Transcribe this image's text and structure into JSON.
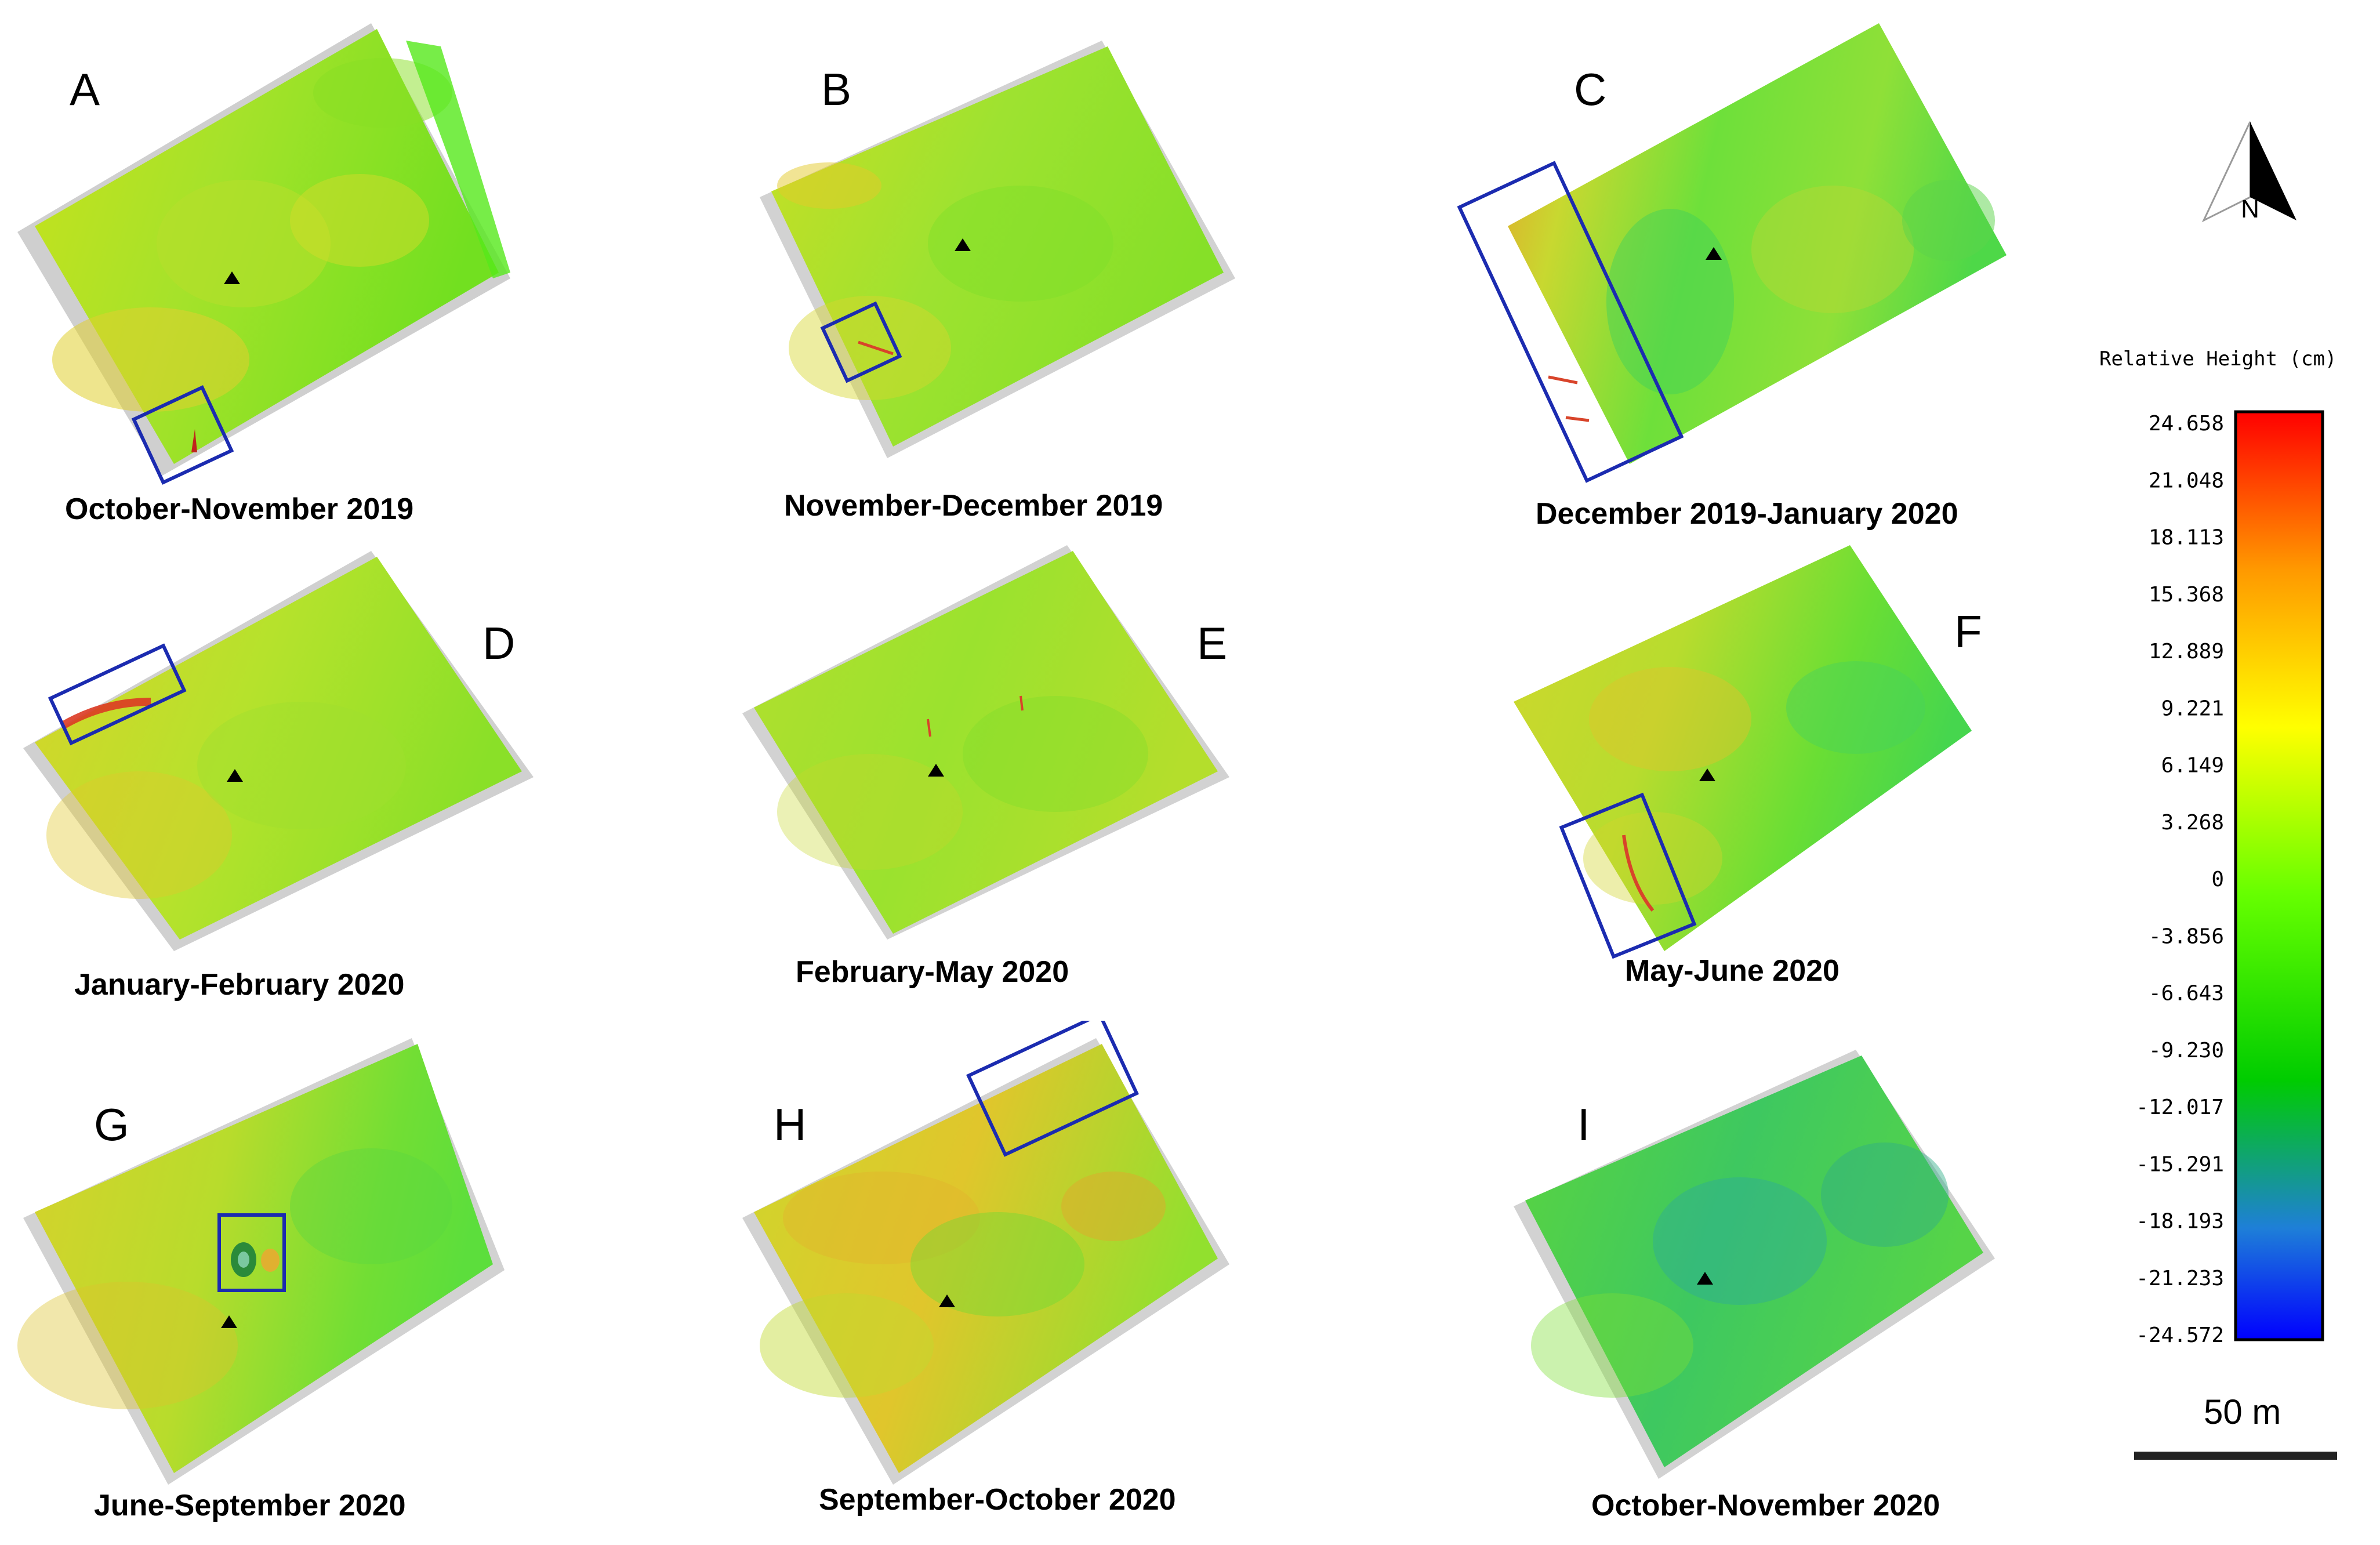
{
  "panels": [
    {
      "id": "A",
      "letter": "A",
      "caption": "October-November 2019"
    },
    {
      "id": "B",
      "letter": "B",
      "caption": "November-December 2019"
    },
    {
      "id": "C",
      "letter": "C",
      "caption": "December 2019-January 2020"
    },
    {
      "id": "D",
      "letter": "D",
      "caption": "January-February 2020"
    },
    {
      "id": "E",
      "letter": "E",
      "caption": "February-May 2020"
    },
    {
      "id": "F",
      "letter": "F",
      "caption": "May-June 2020"
    },
    {
      "id": "G",
      "letter": "G",
      "caption": "June-September 2020"
    },
    {
      "id": "H",
      "letter": "H",
      "caption": "September-October 2020"
    },
    {
      "id": "I",
      "letter": "I",
      "caption": "October-November 2020"
    }
  ],
  "legend": {
    "title": "Relative Height (cm)",
    "ticks": [
      "24.658",
      "21.048",
      "18.113",
      "15.368",
      "12.889",
      "9.221",
      "6.149",
      "3.268",
      "0",
      "-3.856",
      "-6.643",
      "-9.230",
      "-12.017",
      "-15.291",
      "-18.193",
      "-21.233",
      "-24.572"
    ],
    "colors": {
      "max": "#ff0000",
      "high": "#ff9900",
      "mid_high": "#ffff00",
      "zero": "#66ff00",
      "mid_low": "#00cc00",
      "low": "#1e7fd8",
      "min": "#0000ff"
    }
  },
  "north_arrow": {
    "label": "N"
  },
  "scale_bar": {
    "label": "50 m"
  },
  "styles": {
    "highlight_box_color": "#1b2bb0",
    "marker_color": "#000000"
  }
}
